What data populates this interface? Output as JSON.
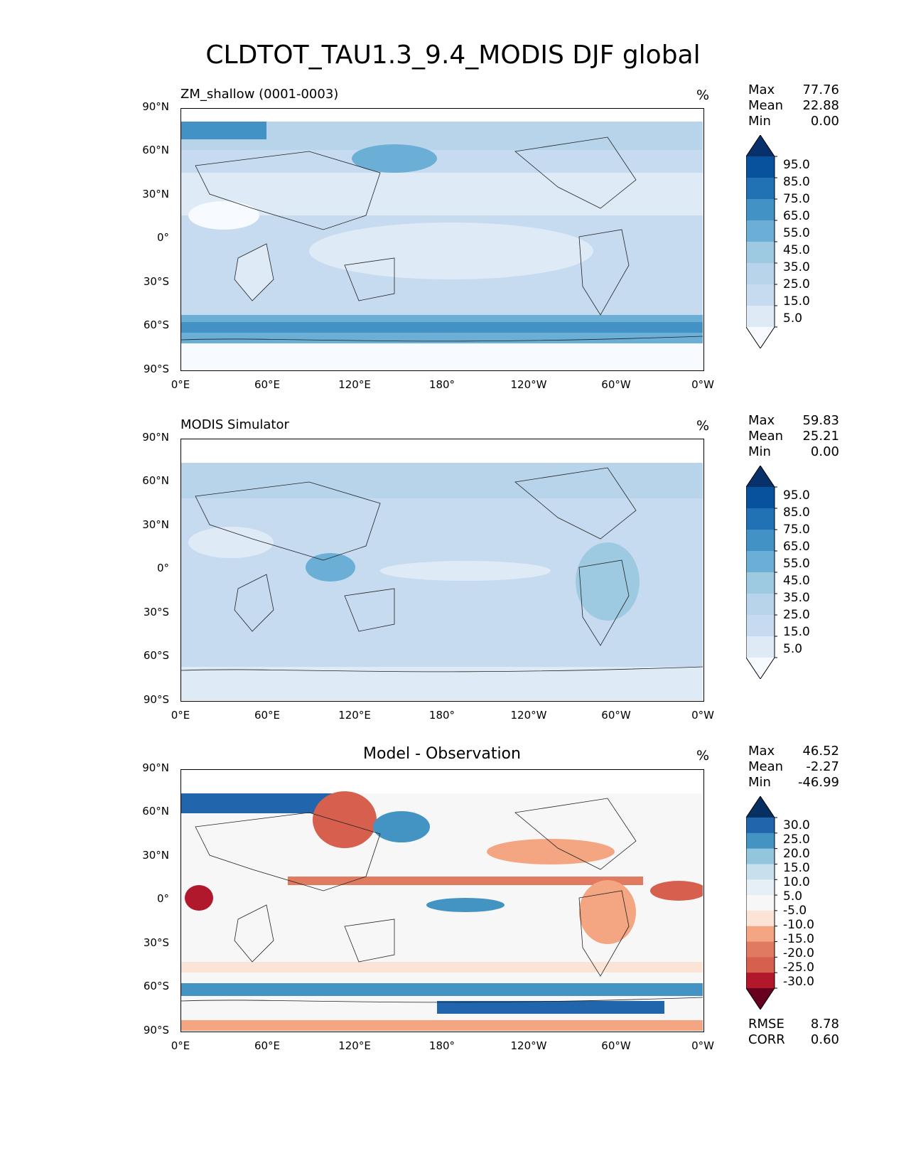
{
  "figure_title": "CLDTOT_TAU1.3_9.4_MODIS DJF global",
  "chart_data": [
    {
      "type": "heatmap",
      "title": "ZM_shallow (0001-0003)",
      "units": "%",
      "stats": [
        {
          "label": "Max",
          "value": "77.76"
        },
        {
          "label": "Mean",
          "value": "22.88"
        },
        {
          "label": "Min",
          "value": "0.00"
        }
      ],
      "colorbar_ticks": [
        "95.0",
        "85.0",
        "75.0",
        "65.0",
        "55.0",
        "45.0",
        "35.0",
        "25.0",
        "15.0",
        "5.0"
      ],
      "colorbar_colors": [
        "#08306b",
        "#08519c",
        "#2171b5",
        "#4292c6",
        "#6baed6",
        "#9ecae1",
        "#b7d4ea",
        "#c6dbef",
        "#deebf7",
        "#f7fbff"
      ],
      "yticks": [
        "90°N",
        "60°N",
        "30°N",
        "0°",
        "30°S",
        "60°S",
        "90°S"
      ],
      "xticks": [
        "0°E",
        "60°E",
        "120°E",
        "180°",
        "120°W",
        "60°W",
        "0°W"
      ]
    },
    {
      "type": "heatmap",
      "title": "MODIS Simulator",
      "units": "%",
      "stats": [
        {
          "label": "Max",
          "value": "59.83"
        },
        {
          "label": "Mean",
          "value": "25.21"
        },
        {
          "label": "Min",
          "value": "0.00"
        }
      ],
      "colorbar_ticks": [
        "95.0",
        "85.0",
        "75.0",
        "65.0",
        "55.0",
        "45.0",
        "35.0",
        "25.0",
        "15.0",
        "5.0"
      ],
      "colorbar_colors": [
        "#08306b",
        "#08519c",
        "#2171b5",
        "#4292c6",
        "#6baed6",
        "#9ecae1",
        "#b7d4ea",
        "#c6dbef",
        "#deebf7",
        "#f7fbff"
      ],
      "yticks": [
        "90°N",
        "60°N",
        "30°N",
        "0°",
        "30°S",
        "60°S",
        "90°S"
      ],
      "xticks": [
        "0°E",
        "60°E",
        "120°E",
        "180°",
        "120°W",
        "60°W",
        "0°W"
      ]
    },
    {
      "type": "heatmap",
      "title": "Model - Observation",
      "units": "%",
      "stats": [
        {
          "label": "Max",
          "value": "46.52"
        },
        {
          "label": "Mean",
          "value": "-2.27"
        },
        {
          "label": "Min",
          "value": "-46.99"
        }
      ],
      "extra_stats": [
        {
          "label": "RMSE",
          "value": "8.78"
        },
        {
          "label": "CORR",
          "value": "0.60"
        }
      ],
      "colorbar_ticks": [
        "30.0",
        "25.0",
        "20.0",
        "15.0",
        "10.0",
        "5.0",
        "-5.0",
        "-10.0",
        "-15.0",
        "-20.0",
        "-25.0",
        "-30.0"
      ],
      "colorbar_colors": [
        "#053061",
        "#2166ac",
        "#4393c3",
        "#92c5de",
        "#c8e0ee",
        "#e5eff5",
        "#f7f7f7",
        "#fbe3d5",
        "#f4a582",
        "#e07b62",
        "#d6604d",
        "#b2182b",
        "#67001f"
      ],
      "yticks": [
        "90°N",
        "60°N",
        "30°N",
        "0°",
        "30°S",
        "60°S",
        "90°S"
      ],
      "xticks": [
        "0°E",
        "60°E",
        "120°E",
        "180°",
        "120°W",
        "60°W",
        "0°W"
      ]
    }
  ]
}
